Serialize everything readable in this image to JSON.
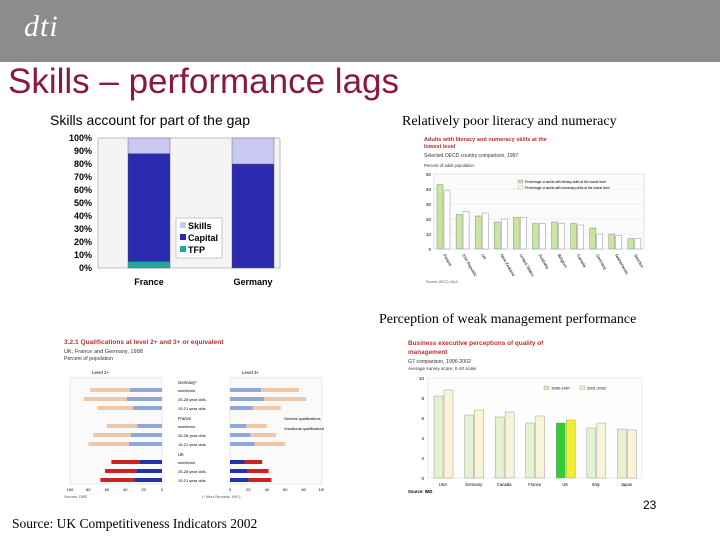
{
  "header": {
    "logo": "dti"
  },
  "title": "Skills – performance lags",
  "labels": {
    "top_left": "Skills account for part of the gap",
    "top_right": "Relatively poor literacy and numeracy",
    "mid_right": "Perception of weak management performance"
  },
  "footer": {
    "source": "Source: UK Competitiveness Indicators 2002",
    "page_number": "23"
  },
  "colors": {
    "title": "#8b1a3a",
    "header": "#8c8c8c",
    "skills": "#c8c8f0",
    "capital": "#2b2bb0",
    "tfp": "#22aa99"
  },
  "chart_data": [
    {
      "type": "bar",
      "stacked": true,
      "categories": [
        "France",
        "Germany"
      ],
      "series": [
        {
          "name": "TFP",
          "values": [
            5,
            0
          ]
        },
        {
          "name": "Capital",
          "values": [
            83,
            80
          ]
        },
        {
          "name": "Skills",
          "values": [
            12,
            20
          ]
        }
      ],
      "ytick_labels": [
        "0%",
        "10%",
        "20%",
        "30%",
        "40%",
        "50%",
        "60%",
        "70%",
        "80%",
        "90%",
        "100%"
      ],
      "ylim": [
        0,
        100
      ],
      "legend": "inside-right"
    },
    {
      "type": "bar",
      "title": "Adults with literacy and numeracy skills at the lowest level",
      "subtitle": "Selected OECD country comparison, 1997",
      "ylabel": "Percent of adult population",
      "legend_entries": [
        "Percentage of adults with literacy skills at the lowest level",
        "Percentage of adults with numeracy skills at the lowest level"
      ],
      "categories": [
        "Poland",
        "Irish Republic",
        "UK",
        "New Zealand",
        "United States",
        "Australia",
        "Belgium",
        "Canada",
        "Germany",
        "Netherlands",
        "Sweden"
      ],
      "series": [
        {
          "values": [
            43,
            23,
            22,
            18,
            21,
            17,
            18,
            17,
            14,
            10,
            7
          ]
        },
        {
          "values": [
            39,
            25,
            24,
            20,
            21,
            17,
            17,
            16,
            10,
            9,
            7
          ]
        }
      ],
      "ytick_labels": [
        "0",
        "10",
        "20",
        "30",
        "40",
        "50"
      ],
      "ylim": [
        0,
        50
      ]
    },
    {
      "type": "bar",
      "orientation": "horizontal",
      "title": "3.2.1 Qualifications at level 2+ and 3+ or equivalent",
      "subtitle": "UK, France and Germany, 1998",
      "subsubtitle": "Percent of population",
      "panel_labels": [
        "Level 2+",
        "Level 3+"
      ],
      "groups": [
        {
          "name": "Germany*",
          "rows": [
            "workforce",
            "25-28 year olds",
            "19-21 year olds"
          ]
        },
        {
          "name": "France",
          "rows": [
            "workforce",
            "25-28 year olds",
            "19-21 year olds"
          ]
        },
        {
          "name": "UK",
          "rows": [
            "workforce",
            "25-28 year olds",
            "19-21 year olds"
          ]
        }
      ],
      "legend_entries": [
        "General qualifications",
        "Vocational qualifications"
      ],
      "level2_values": [
        [
          78,
          85,
          70
        ],
        [
          60,
          75,
          80
        ],
        [
          55,
          62,
          67
        ]
      ],
      "level3_values": [
        [
          75,
          83,
          55
        ],
        [
          40,
          50,
          60
        ],
        [
          35,
          42,
          45
        ]
      ],
      "xtick_labels_left": [
        "100",
        "80",
        "60",
        "40",
        "20",
        "0"
      ],
      "xtick_labels_right": [
        "0",
        "20",
        "40",
        "60",
        "80",
        "100"
      ],
      "source_notes": [
        "Sources: DfEE",
        "(* West Germany, 1997)"
      ]
    },
    {
      "type": "bar",
      "title": "Business executive perceptions of quality of management",
      "subtitle": "G7 comparison, 1996-2002",
      "ylabel": "Average survey score, 0-10 scale",
      "legend_entries": [
        "1996-1997",
        "2001-2002"
      ],
      "categories": [
        "USA",
        "Germany",
        "Canada",
        "France",
        "UK",
        "Italy",
        "Japan"
      ],
      "series": [
        {
          "name": "1996-1997",
          "values": [
            8.2,
            6.3,
            6.1,
            5.5,
            5.5,
            5.0,
            4.9
          ]
        },
        {
          "name": "2001-2002",
          "values": [
            8.8,
            6.8,
            6.6,
            6.2,
            5.8,
            5.5,
            4.8
          ]
        }
      ],
      "ytick_labels": [
        "0",
        "2",
        "4",
        "6",
        "8",
        "10"
      ],
      "ylim": [
        0,
        10
      ],
      "source": "Source: IMD"
    }
  ]
}
